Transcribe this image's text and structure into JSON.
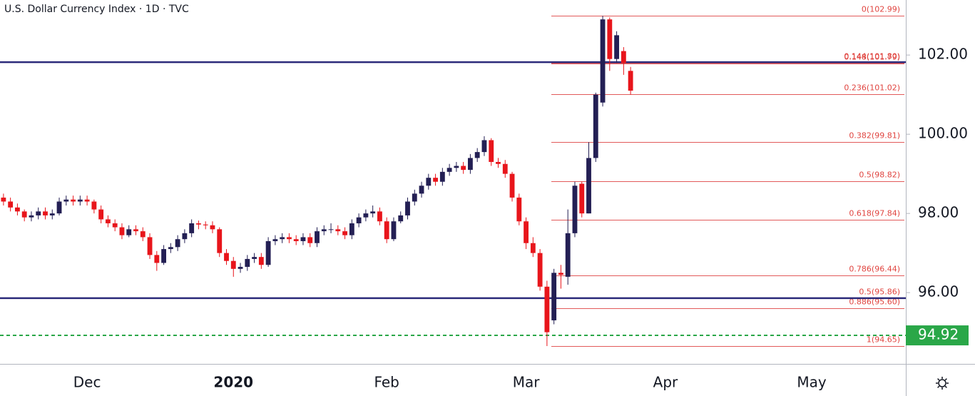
{
  "chart_data": {
    "type": "candlestick",
    "title": "U.S. Dollar Currency Index · 1D · TVC",
    "categories": [
      null,
      null,
      null,
      null,
      null,
      null,
      null,
      null,
      null,
      null,
      null,
      null,
      "Dec",
      null,
      null,
      null,
      null,
      null,
      null,
      null,
      null,
      null,
      null,
      null,
      null,
      null,
      null,
      null,
      null,
      null,
      null,
      null,
      null,
      "2020",
      null,
      null,
      null,
      null,
      null,
      null,
      null,
      null,
      null,
      null,
      null,
      null,
      null,
      null,
      null,
      null,
      null,
      null,
      null,
      null,
      null,
      "Feb",
      null,
      null,
      null,
      null,
      null,
      null,
      null,
      null,
      null,
      null,
      null,
      null,
      null,
      null,
      null,
      null,
      null,
      null,
      null,
      "Mar",
      null,
      null,
      null,
      null,
      null,
      null,
      null,
      null,
      null,
      null,
      null,
      null,
      null,
      null,
      null,
      null,
      null,
      null,
      null,
      "Apr",
      null,
      null,
      null,
      null,
      null,
      null,
      null,
      null,
      null,
      null,
      null,
      null,
      null,
      null,
      null,
      null,
      null,
      null,
      null,
      null,
      "May",
      null,
      null,
      null,
      null,
      null,
      null,
      null,
      null,
      null,
      null,
      null,
      null,
      null
    ],
    "open": [
      98.4,
      98.3,
      98.15,
      98.05,
      97.9,
      97.95,
      98.05,
      97.95,
      98.0,
      98.3,
      98.35,
      98.3,
      98.35,
      98.3,
      98.1,
      97.85,
      97.75,
      97.65,
      97.45,
      97.6,
      97.55,
      97.4,
      96.95,
      96.75,
      97.1,
      97.15,
      97.35,
      97.5,
      97.75,
      97.72,
      97.7,
      97.6,
      97.0,
      96.8,
      96.6,
      96.65,
      96.85,
      96.9,
      96.7,
      97.3,
      97.35,
      97.4,
      97.35,
      97.3,
      97.4,
      97.25,
      97.55,
      97.6,
      97.6,
      97.55,
      97.45,
      97.75,
      97.9,
      98.0,
      98.05,
      97.8,
      97.35,
      97.8,
      97.95,
      98.3,
      98.5,
      98.7,
      98.9,
      98.8,
      99.05,
      99.15,
      99.2,
      99.1,
      99.4,
      99.55,
      99.85,
      99.3,
      99.25,
      99.0,
      98.4,
      97.8,
      97.25,
      97.0,
      96.15,
      95.3,
      96.5,
      96.4,
      97.5,
      98.75,
      98.0,
      99.4,
      100.8,
      102.9,
      101.9,
      102.1,
      101.6,
      null,
      null,
      null,
      null,
      null,
      null,
      null,
      null,
      null,
      null,
      null,
      null,
      null,
      null,
      null,
      null,
      null,
      null,
      null,
      null,
      null,
      null,
      null,
      null,
      null,
      null,
      null,
      null,
      null,
      null,
      null,
      null,
      null,
      null,
      null,
      null,
      null,
      null,
      null
    ],
    "high": [
      98.5,
      98.4,
      98.25,
      98.1,
      98.05,
      98.15,
      98.15,
      98.1,
      98.4,
      98.45,
      98.45,
      98.45,
      98.45,
      98.35,
      98.2,
      97.95,
      97.85,
      97.75,
      97.7,
      97.7,
      97.65,
      97.5,
      97.05,
      97.2,
      97.25,
      97.45,
      97.6,
      97.85,
      97.82,
      97.8,
      97.8,
      97.65,
      97.1,
      96.9,
      96.75,
      96.95,
      97.0,
      97.0,
      97.4,
      97.45,
      97.5,
      97.5,
      97.45,
      97.5,
      97.5,
      97.65,
      97.7,
      97.75,
      97.7,
      97.65,
      97.85,
      98.0,
      98.1,
      98.2,
      98.15,
      97.9,
      97.9,
      98.05,
      98.4,
      98.6,
      98.8,
      99.0,
      99.0,
      99.15,
      99.25,
      99.3,
      99.3,
      99.5,
      99.65,
      99.95,
      99.9,
      99.4,
      99.35,
      99.05,
      98.5,
      97.9,
      97.4,
      97.1,
      96.3,
      96.6,
      96.7,
      98.1,
      98.8,
      98.8,
      99.8,
      101.05,
      102.99,
      102.95,
      102.6,
      102.2,
      101.7,
      null,
      null,
      null,
      null,
      null,
      null,
      null,
      null,
      null,
      null,
      null,
      null,
      null,
      null,
      null,
      null,
      null,
      null,
      null,
      null,
      null,
      null,
      null,
      null,
      null,
      null,
      null,
      null,
      null,
      null,
      null,
      null,
      null,
      null,
      null,
      null,
      null,
      null,
      null
    ],
    "low": [
      98.2,
      98.05,
      97.95,
      97.8,
      97.8,
      97.85,
      97.85,
      97.85,
      97.95,
      98.2,
      98.2,
      98.2,
      98.2,
      98.0,
      97.75,
      97.65,
      97.55,
      97.35,
      97.4,
      97.45,
      97.3,
      96.85,
      96.55,
      96.7,
      97.0,
      97.05,
      97.25,
      97.4,
      97.6,
      97.6,
      97.5,
      96.9,
      96.7,
      96.4,
      96.5,
      96.55,
      96.75,
      96.6,
      96.65,
      97.2,
      97.25,
      97.25,
      97.2,
      97.2,
      97.15,
      97.15,
      97.45,
      97.5,
      97.45,
      97.35,
      97.35,
      97.65,
      97.8,
      97.9,
      97.7,
      97.25,
      97.3,
      97.75,
      97.85,
      98.2,
      98.4,
      98.6,
      98.7,
      98.7,
      98.95,
      99.05,
      99.0,
      99.0,
      99.3,
      99.45,
      99.2,
      99.15,
      98.9,
      98.3,
      97.7,
      97.1,
      96.9,
      96.05,
      94.65,
      95.2,
      96.1,
      96.2,
      97.4,
      97.9,
      98.0,
      99.3,
      100.7,
      101.6,
      101.8,
      101.5,
      101.0,
      null,
      null,
      null,
      null,
      null,
      null,
      null,
      null,
      null,
      null,
      null,
      null,
      null,
      null,
      null,
      null,
      null,
      null,
      null,
      null,
      null,
      null,
      null,
      null,
      null,
      null,
      null,
      null,
      null,
      null,
      null,
      null,
      null,
      null,
      null,
      null,
      null,
      null,
      null
    ],
    "close": [
      98.3,
      98.15,
      98.05,
      97.9,
      97.95,
      98.05,
      97.95,
      98.0,
      98.3,
      98.35,
      98.3,
      98.35,
      98.3,
      98.1,
      97.85,
      97.75,
      97.65,
      97.45,
      97.6,
      97.55,
      97.4,
      96.95,
      96.75,
      97.1,
      97.15,
      97.35,
      97.5,
      97.75,
      97.72,
      97.7,
      97.6,
      97.0,
      96.8,
      96.6,
      96.65,
      96.85,
      96.9,
      96.7,
      97.3,
      97.35,
      97.4,
      97.35,
      97.3,
      97.4,
      97.25,
      97.55,
      97.6,
      97.6,
      97.55,
      97.45,
      97.75,
      97.9,
      98.0,
      98.05,
      97.8,
      97.35,
      97.8,
      97.95,
      98.3,
      98.5,
      98.7,
      98.9,
      98.8,
      99.05,
      99.15,
      99.2,
      99.1,
      99.4,
      99.55,
      99.85,
      99.3,
      99.25,
      99.0,
      98.4,
      97.8,
      97.25,
      97.0,
      96.15,
      95.0,
      96.5,
      96.45,
      97.5,
      98.7,
      98.0,
      99.4,
      101.0,
      102.9,
      101.9,
      102.5,
      101.8,
      101.1,
      null,
      null,
      null,
      null,
      null,
      null,
      null,
      null,
      null,
      null,
      null,
      null,
      null,
      null,
      null,
      null,
      null,
      null,
      null,
      null,
      null,
      null,
      null,
      null,
      null,
      null,
      null,
      null,
      null,
      null,
      null,
      null,
      null,
      null,
      null,
      null,
      null,
      null,
      null
    ],
    "up_color": "#231f54",
    "down_color": "#e8151b",
    "ylim": [
      94.2,
      103.39
    ],
    "yticks": [
      {
        "value": 96,
        "label": "96.00"
      },
      {
        "value": 98,
        "label": "98.00"
      },
      {
        "value": 100,
        "label": "100.00"
      },
      {
        "value": 102,
        "label": "102.00"
      }
    ],
    "levels": [
      {
        "value": 101.82,
        "color": "#2b2a7a"
      },
      {
        "value": 95.86,
        "color": "#2b2a7a"
      }
    ],
    "price_line": {
      "value": 94.92,
      "color": "#2aa748"
    },
    "fib_color": "#e25a5a",
    "fib_levels": [
      {
        "value": 102.99,
        "label": "0(102.99)"
      },
      {
        "value": 101.8,
        "label": "0.144(101.80)"
      },
      {
        "value": 101.79,
        "label": "0.148(101.79)"
      },
      {
        "value": 101.02,
        "label": "0.236(101.02)"
      },
      {
        "value": 99.81,
        "label": "0.382(99.81)"
      },
      {
        "value": 98.82,
        "label": "0.5(98.82)"
      },
      {
        "value": 97.84,
        "label": "0.618(97.84)"
      },
      {
        "value": 96.44,
        "label": "0.786(96.44)"
      },
      {
        "value": 95.86,
        "label": "0.5(95.86)"
      },
      {
        "value": 95.6,
        "label": "0.886(95.60)"
      },
      {
        "value": 94.65,
        "label": "1(94.65)"
      }
    ]
  }
}
